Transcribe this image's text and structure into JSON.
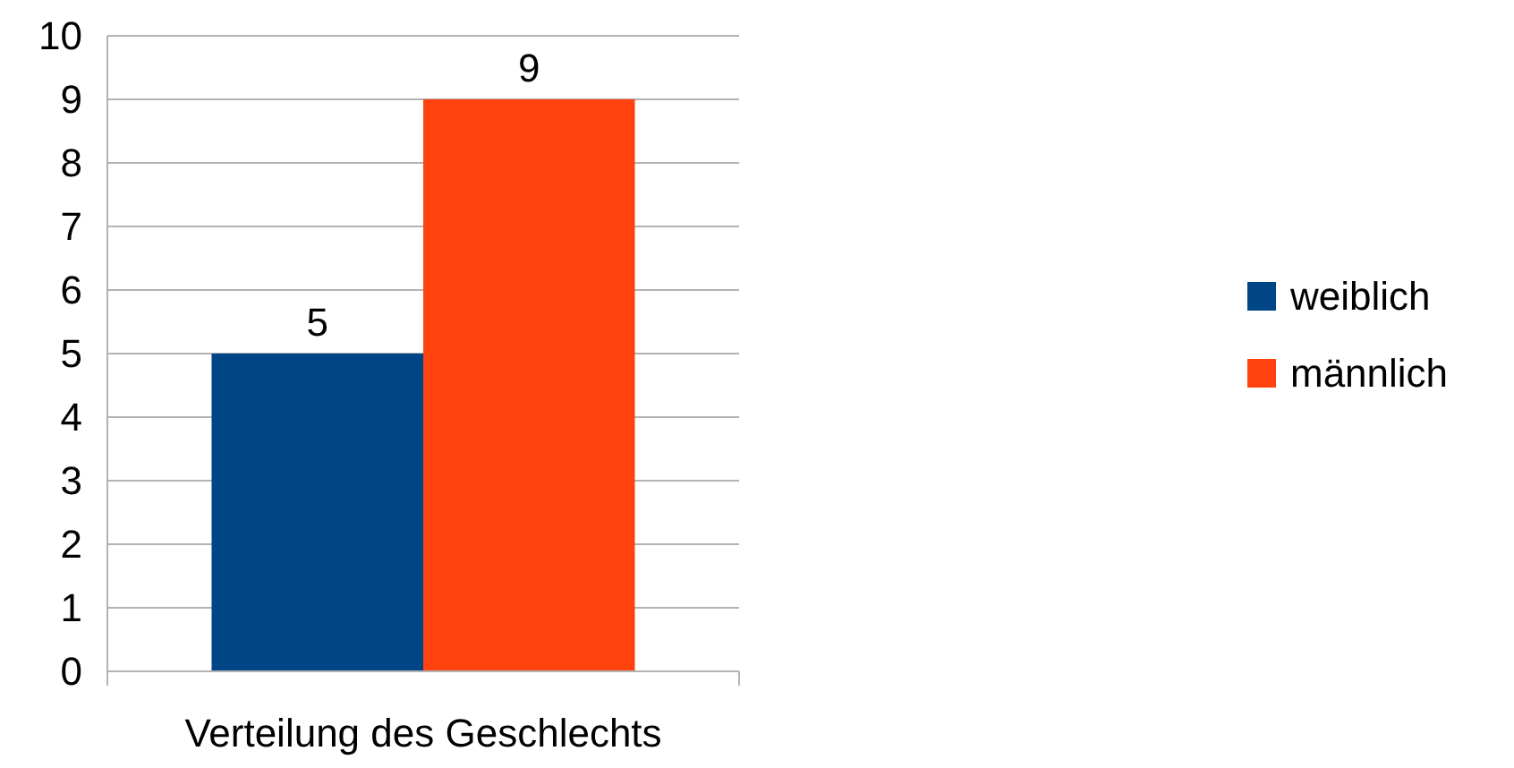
{
  "chart_data": {
    "type": "bar",
    "categories": [
      "Verteilung des Geschlechts"
    ],
    "series": [
      {
        "name": "weiblich",
        "color": "#004586",
        "values": [
          5
        ]
      },
      {
        "name": "männlich",
        "color": "#ff420e",
        "values": [
          9
        ]
      }
    ],
    "ylim": [
      0,
      10
    ],
    "yticks": [
      0,
      1,
      2,
      3,
      4,
      5,
      6,
      7,
      8,
      9,
      10
    ],
    "grid": "y",
    "legend": "right",
    "data_labels": true
  }
}
